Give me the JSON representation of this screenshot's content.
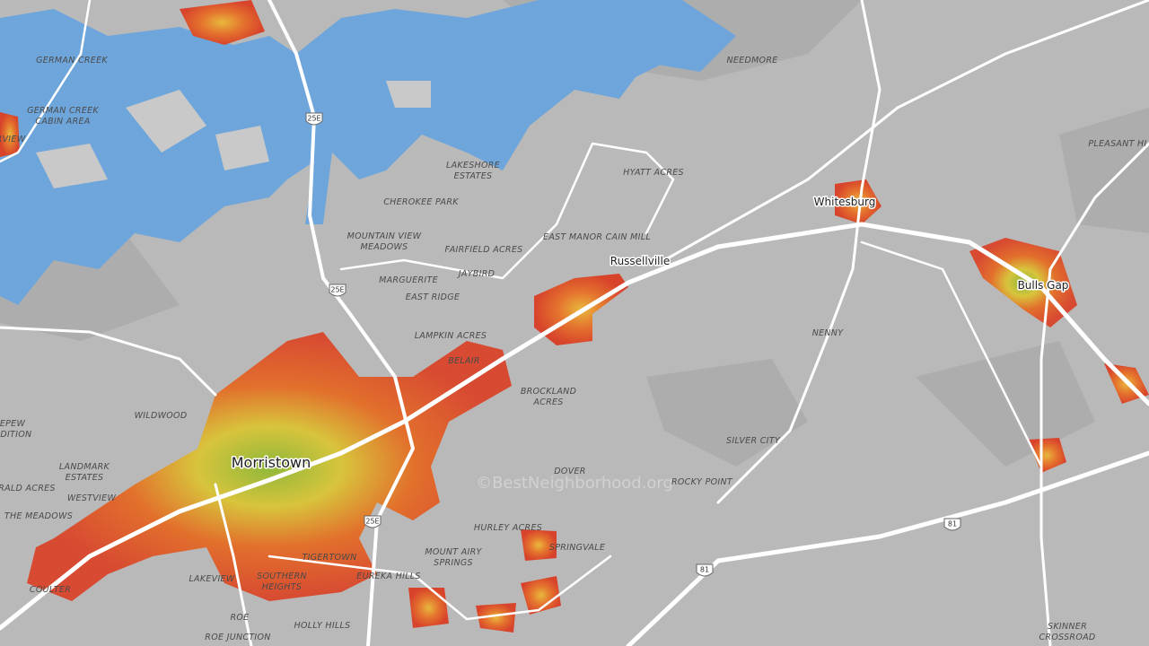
{
  "map": {
    "areas": [
      [
        "GERMAN CREEK"
      ],
      [
        "GERMAN CREEK",
        "CABIN AREA"
      ],
      [
        "RVIEW"
      ],
      [
        "NEEDMORE"
      ],
      [
        "PLEASANT HI"
      ],
      [
        "HYATT ACRES"
      ],
      [
        "LAKESHORE",
        "ESTATES"
      ],
      [
        "CHEROKEE PARK"
      ],
      [
        "MOUNTAIN VIEW",
        "MEADOWS"
      ],
      [
        "FAIRFIELD ACRES"
      ],
      [
        "EAST MANOR CAIN MILL"
      ],
      [
        "MARGUERITE"
      ],
      [
        "JAYBIRD"
      ],
      [
        "EAST RIDGE"
      ],
      [
        "NENNY"
      ],
      [
        "LAMPKIN ACRES"
      ],
      [
        "BELAIR"
      ],
      [
        "BROCKLAND",
        "ACRES"
      ],
      [
        "WILDWOOD"
      ],
      [
        "EPEW",
        "ODITION"
      ],
      [
        "SILVER CITY"
      ],
      [
        "LANDMARK",
        "ESTATES"
      ],
      [
        "DOVER"
      ],
      [
        "ROCKY POINT"
      ],
      [
        "RALD ACRES"
      ],
      [
        "WESTVIEW"
      ],
      [
        "THE MEADOWS"
      ],
      [
        "HURLEY ACRES"
      ],
      [
        "SPRINGVALE"
      ],
      [
        "MOUNT AIRY",
        "SPRINGS"
      ],
      [
        "TIGERTOWN"
      ],
      [
        "SOUTHERN",
        "HEIGHTS"
      ],
      [
        "EUREKA HILLS"
      ],
      [
        "LAKEVIEW"
      ],
      [
        "COULTER"
      ],
      [
        "ROE"
      ],
      [
        "HOLLY HILLS"
      ],
      [
        "SKINNER",
        "CROSSROAD"
      ],
      [
        "ROE JUNCTION"
      ]
    ],
    "cities": [
      "Whitesburg",
      "Russellville",
      "Bulls Gap",
      "Morristown"
    ],
    "shields": [
      "25E",
      "25E",
      "25E",
      "81",
      "81"
    ],
    "watermark": "©BestNeighborhood.org"
  }
}
